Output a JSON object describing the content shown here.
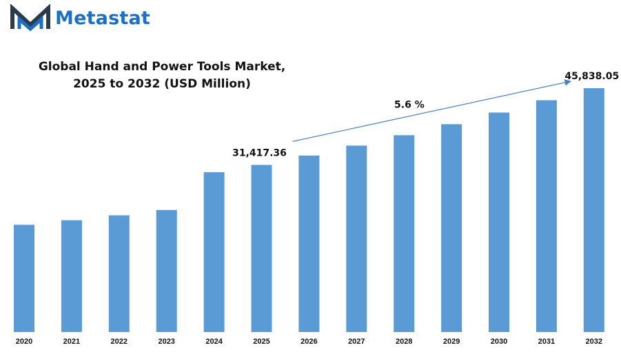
{
  "brand": {
    "name": "Metastat",
    "logo_icon": "metastat-m-logo-icon",
    "colors": {
      "dark": "#2d3a4a",
      "blue": "#1e6fc4"
    }
  },
  "chart_data": {
    "type": "bar",
    "title_lines": [
      "Global Hand and Power Tools Market,",
      "2025 to 2032 (USD Million)"
    ],
    "categories": [
      "2020",
      "2021",
      "2022",
      "2023",
      "2024",
      "2025",
      "2026",
      "2027",
      "2028",
      "2029",
      "2030",
      "2031",
      "2032"
    ],
    "values": [
      20160,
      21010,
      21940,
      22940,
      30040,
      31417.36,
      33176.73,
      35034.63,
      36996.57,
      39068.38,
      41256.21,
      43566.56,
      45838.05
    ],
    "xlabel": "",
    "ylabel": "",
    "ylim": [
      0,
      50000
    ],
    "bar_color": "#5b9bd5",
    "annotations": [
      {
        "label": "31,417.36",
        "category": "2025"
      },
      {
        "label": "45,838.05",
        "category": "2032"
      },
      {
        "label": "5.6  %",
        "type": "growth-arrow",
        "from": "2025",
        "to": "2032"
      }
    ],
    "grid": false,
    "legend": "none"
  }
}
